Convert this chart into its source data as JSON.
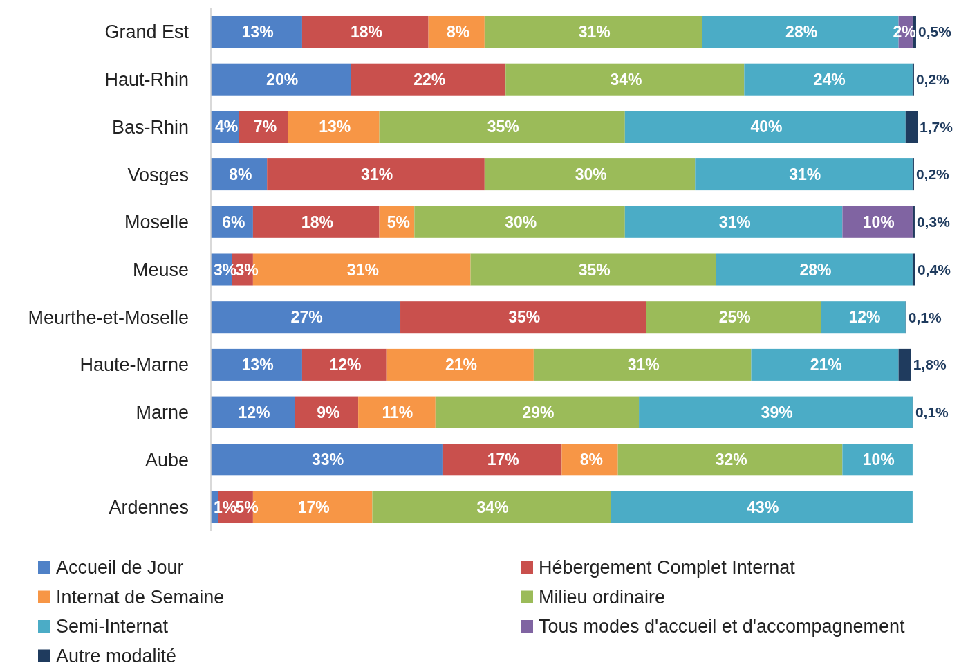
{
  "chart_data": {
    "type": "bar",
    "orientation": "horizontal",
    "stacked": true,
    "legend": "bottom",
    "categories": [
      "Grand Est",
      "Haut-Rhin",
      "Bas-Rhin",
      "Vosges",
      "Moselle",
      "Meuse",
      "Meurthe-et-Moselle",
      "Haute-Marne",
      "Marne",
      "Aube",
      "Ardennes"
    ],
    "series": [
      {
        "name": "Accueil de Jour",
        "color": "#4f81c7",
        "values": [
          13,
          20,
          4,
          8,
          6,
          3,
          27,
          13,
          12,
          33,
          1
        ],
        "value_labels": [
          "13%",
          "20%",
          "4%",
          "8%",
          "6%",
          "3%",
          "27%",
          "13%",
          "12%",
          "33%",
          "1%"
        ]
      },
      {
        "name": "Hébergement Complet Internat",
        "color": "#c9504d",
        "values": [
          18,
          22,
          7,
          31,
          18,
          3,
          35,
          12,
          9,
          17,
          5
        ],
        "value_labels": [
          "18%",
          "22%",
          "7%",
          "31%",
          "18%",
          "3%",
          "35%",
          "12%",
          "9%",
          "17%",
          "5%"
        ]
      },
      {
        "name": "Internat de Semaine",
        "color": "#f79646",
        "values": [
          8,
          null,
          13,
          null,
          5,
          31,
          null,
          21,
          11,
          8,
          17
        ],
        "value_labels": [
          "8%",
          null,
          "13%",
          null,
          "5%",
          "31%",
          null,
          "21%",
          "11%",
          "8%",
          "17%"
        ]
      },
      {
        "name": "Milieu ordinaire",
        "color": "#9bbb59",
        "values": [
          31,
          34,
          35,
          30,
          30,
          35,
          25,
          31,
          29,
          32,
          34
        ],
        "value_labels": [
          "31%",
          "34%",
          "35%",
          "30%",
          "30%",
          "35%",
          "25%",
          "31%",
          "29%",
          "32%",
          "34%"
        ]
      },
      {
        "name": "Semi-Internat",
        "color": "#4bacc6",
        "values": [
          28,
          24,
          40,
          31,
          31,
          28,
          12,
          21,
          39,
          10,
          43
        ],
        "value_labels": [
          "28%",
          "24%",
          "40%",
          "31%",
          "31%",
          "28%",
          "12%",
          "21%",
          "39%",
          "10%",
          "43%"
        ]
      },
      {
        "name": "Tous modes d'accueil et d'accompagnement",
        "color": "#8064a2",
        "values": [
          2,
          null,
          null,
          null,
          10,
          null,
          null,
          null,
          null,
          null,
          null
        ],
        "value_labels": [
          "2%",
          null,
          null,
          null,
          "10%",
          null,
          null,
          null,
          null,
          null,
          null
        ]
      },
      {
        "name": "Autre modalité",
        "color": "#1f3b5e",
        "values": [
          0.5,
          0.2,
          1.7,
          0.2,
          0.3,
          0.4,
          0.1,
          1.8,
          0.1,
          null,
          null
        ],
        "value_labels": [
          "0,5%",
          "0,2%",
          "1,7%",
          "0,2%",
          "0,3%",
          "0,4%",
          "0,1%",
          "1,8%",
          "0,1%",
          null,
          null
        ]
      }
    ]
  }
}
